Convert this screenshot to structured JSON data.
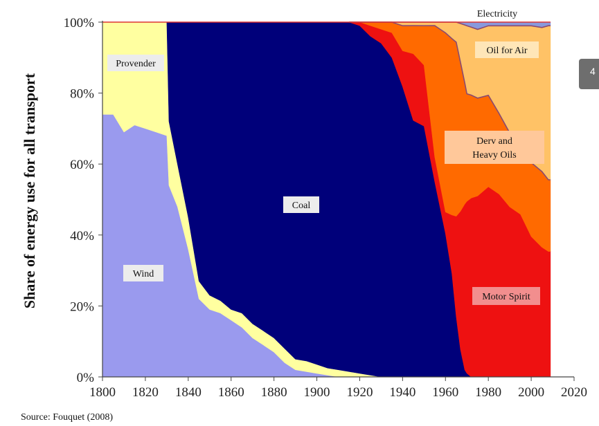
{
  "chart_data": {
    "type": "area",
    "stacked": "percent",
    "ylabel": "Share of energy use for all transport",
    "xlabel": "",
    "source": "Source: Fouquet (2008)",
    "xlim": [
      1800,
      2020
    ],
    "ylim": [
      0,
      100
    ],
    "x_ticks": [
      "1800",
      "1820",
      "1840",
      "1860",
      "1880",
      "1900",
      "1920",
      "1940",
      "1960",
      "1980",
      "2000",
      "2020"
    ],
    "y_ticks": [
      "0%",
      "20%",
      "40%",
      "60%",
      "80%",
      "100%"
    ],
    "colors": {
      "wind": "#9a9aee",
      "provender": "#ffffa0",
      "coal": "#00007a",
      "motor_spirit": "#ee1111",
      "derv_heavy_oils": "#ff6a00",
      "oil_for_air": "#ffc266",
      "electricity": "#8899dd",
      "label_bg": "#ececec",
      "label_bg_oil_air": "#ffe6b8",
      "label_bg_derv": "#ffc89a",
      "label_bg_motor": "#f28e8e",
      "cumulative_line": "#8a4a70",
      "frame": "#dd3333"
    },
    "series": [
      {
        "name": "Wind",
        "label": "Wind",
        "x": [
          1800,
          1805,
          1810,
          1815,
          1820,
          1825,
          1830,
          1831,
          1835,
          1840,
          1845,
          1850,
          1855,
          1860,
          1865,
          1870,
          1875,
          1880,
          1885,
          1890,
          1895,
          1900,
          1905,
          1910,
          2009
        ],
        "values": [
          74,
          74,
          69,
          71,
          70,
          69,
          68,
          54,
          48,
          36,
          22,
          19,
          18,
          16,
          14,
          11,
          9,
          7,
          4,
          2,
          1.5,
          1,
          0.5,
          0,
          0
        ]
      },
      {
        "name": "Provender",
        "label": "Provender",
        "x": [
          1800,
          1805,
          1810,
          1815,
          1820,
          1825,
          1830,
          1831,
          1835,
          1840,
          1845,
          1850,
          1855,
          1860,
          1865,
          1870,
          1875,
          1880,
          1885,
          1890,
          1895,
          1900,
          1905,
          1910,
          1915,
          1920,
          1930,
          2009
        ],
        "values": [
          26,
          26,
          31,
          29,
          30,
          31,
          32,
          18,
          12,
          9,
          5,
          4,
          3.5,
          3,
          4,
          4,
          4,
          4,
          4,
          3,
          3,
          2.5,
          2,
          2,
          1.5,
          1,
          0,
          0
        ]
      },
      {
        "name": "Coal",
        "label": "Coal",
        "x": [
          1800,
          1830,
          1831,
          1835,
          1840,
          1845,
          1850,
          1855,
          1860,
          1865,
          1870,
          1875,
          1880,
          1885,
          1890,
          1895,
          1900,
          1905,
          1910,
          1915,
          1920,
          1925,
          1930,
          1935,
          1940,
          1945,
          1950,
          1955,
          1960,
          1963,
          1965,
          1967,
          1969,
          1970,
          1972,
          2009
        ],
        "values": [
          0,
          0,
          28,
          40,
          55,
          73,
          77,
          78.5,
          81,
          82,
          85,
          87,
          89,
          92,
          95,
          95.5,
          96.5,
          97.5,
          98,
          98.5,
          98,
          96,
          95,
          90,
          81,
          73,
          70,
          55,
          40,
          30,
          18,
          8,
          2,
          1,
          0,
          0
        ]
      },
      {
        "name": "Motor Spirit",
        "label": "Motor Spirit",
        "x": [
          1800,
          1910,
          1915,
          1920,
          1925,
          1930,
          1935,
          1940,
          1945,
          1950,
          1955,
          1960,
          1963,
          1965,
          1967,
          1969,
          1970,
          1972,
          1975,
          1980,
          1985,
          1990,
          1995,
          2000,
          2005,
          2008,
          2009
        ],
        "values": [
          0,
          0,
          0,
          1,
          3,
          4,
          7,
          10,
          19,
          17,
          7,
          6,
          17,
          30,
          40,
          47,
          48,
          50,
          50,
          52,
          50,
          46,
          44,
          38,
          36,
          35,
          35
        ]
      },
      {
        "name": "Derv and Heavy Oils",
        "label": "Derv and\nHeavy Oils",
        "x": [
          1800,
          1910,
          1920,
          1925,
          1930,
          1935,
          1940,
          1945,
          1950,
          1955,
          1960,
          1965,
          1970,
          1975,
          1980,
          1985,
          1990,
          1995,
          2000,
          2005,
          2008,
          2009
        ],
        "values": [
          0,
          0,
          0,
          1,
          2,
          3,
          7,
          8,
          11,
          37,
          50,
          52,
          30,
          27,
          25,
          22,
          20,
          18,
          20,
          21,
          20,
          20
        ]
      },
      {
        "name": "Oil for Air",
        "label": "Oil for Air",
        "x": [
          1800,
          1930,
          1935,
          1940,
          1945,
          1950,
          1955,
          1960,
          1965,
          1970,
          1975,
          1980,
          1985,
          1990,
          1995,
          2000,
          2005,
          2008,
          2009
        ],
        "values": [
          0,
          0,
          0,
          1,
          1,
          1,
          1,
          3,
          6,
          19,
          19,
          19,
          24,
          29,
          33,
          37,
          40,
          43,
          43
        ]
      },
      {
        "name": "Electricity",
        "label": "Electricity",
        "x": [
          1800,
          1960,
          1965,
          1970,
          1975,
          1980,
          1985,
          1990,
          1995,
          2000,
          2005,
          2008,
          2009
        ],
        "values": [
          0,
          0,
          0,
          1,
          2,
          1,
          1,
          1,
          1,
          1,
          1.5,
          1,
          1
        ]
      }
    ],
    "area_labels": [
      {
        "series": "Provender",
        "text": "Provender"
      },
      {
        "series": "Wind",
        "text": "Wind"
      },
      {
        "series": "Coal",
        "text": "Coal"
      },
      {
        "series": "Oil for Air",
        "text": "Oil for Air"
      },
      {
        "series": "Derv and Heavy Oils",
        "text": "Derv and Heavy Oils"
      },
      {
        "series": "Motor Spirit",
        "text": "Motor Spirit"
      },
      {
        "series": "Electricity",
        "text": "Electricity"
      }
    ],
    "grid": false,
    "legend": "none (labels placed on areas)"
  }
}
